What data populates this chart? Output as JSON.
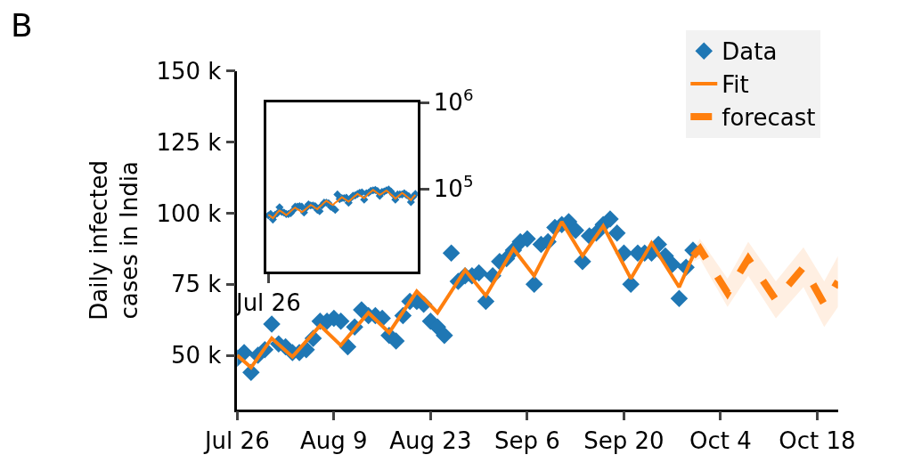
{
  "chart_data": [
    {
      "type": "scatter",
      "title": "B",
      "ylabel": "Daily infected\ncases in India",
      "xlim": [
        "--07-26",
        "--10-21"
      ],
      "xticks": [
        {
          "value": "--07-26",
          "label": "Jul 26"
        },
        {
          "value": "--08-09",
          "label": "Aug 9"
        },
        {
          "value": "--08-23",
          "label": "Aug 23"
        },
        {
          "value": "--09-06",
          "label": "Sep 6"
        },
        {
          "value": "--09-20",
          "label": "Sep 20"
        },
        {
          "value": "--10-04",
          "label": "Oct 4"
        },
        {
          "value": "--10-18",
          "label": "Oct 18"
        }
      ],
      "ylim": [
        31000,
        150000
      ],
      "yticks": [
        {
          "value": 50000,
          "label": "50 k"
        },
        {
          "value": 75000,
          "label": "75 k"
        },
        {
          "value": 100000,
          "label": "100 k"
        },
        {
          "value": 125000,
          "label": "125 k"
        },
        {
          "value": 150000,
          "label": "150 k"
        }
      ],
      "legend": "top right",
      "series": [
        {
          "name": "Data",
          "marker": "diamond",
          "color": "#1f77b4",
          "x": [
            "--07-26",
            "--07-27",
            "--07-28",
            "--07-29",
            "--07-30",
            "--07-31",
            "--08-01",
            "--08-02",
            "--08-03",
            "--08-04",
            "--08-05",
            "--08-06",
            "--08-07",
            "--08-08",
            "--08-09",
            "--08-10",
            "--08-11",
            "--08-12",
            "--08-13",
            "--08-14",
            "--08-15",
            "--08-16",
            "--08-17",
            "--08-18",
            "--08-19",
            "--08-20",
            "--08-21",
            "--08-22",
            "--08-23",
            "--08-24",
            "--08-25",
            "--08-26",
            "--08-27",
            "--08-28",
            "--08-29",
            "--08-30",
            "--08-31",
            "--09-01",
            "--09-02",
            "--09-03",
            "--09-04",
            "--09-05",
            "--09-06",
            "--09-07",
            "--09-08",
            "--09-09",
            "--09-10",
            "--09-11",
            "--09-12",
            "--09-13",
            "--09-14",
            "--09-15",
            "--09-16",
            "--09-17",
            "--09-18",
            "--09-19",
            "--09-20",
            "--09-21",
            "--09-22",
            "--09-23",
            "--09-24",
            "--09-25",
            "--09-26",
            "--09-27",
            "--09-28",
            "--09-29",
            "--09-30"
          ],
          "values": [
            49000,
            51000,
            44000,
            50000,
            52000,
            61000,
            54000,
            53000,
            51000,
            51000,
            52000,
            56000,
            62000,
            62000,
            63000,
            62000,
            53000,
            60000,
            66000,
            64000,
            64000,
            63000,
            57000,
            55000,
            64000,
            69000,
            69000,
            68000,
            62000,
            60000,
            57000,
            86000,
            76000,
            78000,
            78000,
            79000,
            69000,
            78000,
            83000,
            84000,
            87000,
            90000,
            91000,
            75000,
            89000,
            90000,
            95000,
            96000,
            97000,
            94000,
            83000,
            92000,
            93000,
            96000,
            98000,
            93000,
            86000,
            75000,
            86000,
            86000,
            86000,
            89000,
            85000,
            82000,
            70000,
            81000,
            87000
          ]
        },
        {
          "name": "Fit",
          "type": "line",
          "line_style": "solid",
          "color": "#ff7f0e",
          "x": [
            "--07-26",
            "--07-28",
            "--07-31",
            "--08-03",
            "--08-07",
            "--08-10",
            "--08-14",
            "--08-17",
            "--08-21",
            "--08-24",
            "--08-28",
            "--08-31",
            "--09-04",
            "--09-07",
            "--09-11",
            "--09-14",
            "--09-17",
            "--09-21",
            "--09-24",
            "--09-28",
            "--09-30"
          ],
          "values": [
            50000,
            45700,
            56000,
            49500,
            60500,
            53500,
            65000,
            58000,
            72500,
            65000,
            80000,
            71000,
            87500,
            78000,
            97000,
            85000,
            95500,
            77000,
            89500,
            74000,
            85000
          ]
        },
        {
          "name": "forecast",
          "type": "line",
          "line_style": "dashed",
          "color": "#ff7f0e",
          "x": [
            "--09-30",
            "--10-01",
            "--10-05",
            "--10-08",
            "--10-12",
            "--10-16",
            "--10-19",
            "--10-21"
          ],
          "values": [
            85000,
            87500,
            72000,
            84000,
            69500,
            81000,
            68000,
            76000
          ],
          "lower": [
            83000,
            84000,
            67000,
            78000,
            63000,
            74000,
            60000,
            67000
          ],
          "upper": [
            87000,
            91000,
            77000,
            90000,
            76000,
            88000,
            76000,
            85000
          ]
        }
      ]
    },
    {
      "type": "scatter",
      "log": true,
      "categories": [
        "Jul 26",
        null,
        null,
        null,
        null,
        null,
        null,
        null,
        null,
        null,
        null,
        null,
        null,
        null,
        null,
        null,
        null,
        null,
        null,
        null,
        null,
        null,
        null,
        null,
        null,
        null,
        null,
        null,
        null,
        null,
        null,
        null,
        null,
        null,
        null,
        null,
        null,
        null,
        null,
        null,
        null,
        null,
        null,
        null,
        null,
        null,
        null,
        null,
        null,
        null,
        null,
        null,
        null,
        null,
        null,
        null,
        null,
        null,
        null,
        null,
        null,
        null,
        null,
        null,
        null,
        null,
        null
      ],
      "ylim": [
        11000,
        1000000
      ],
      "yticks": [
        {
          "value": 100000,
          "label": "10$^{5}$"
        },
        {
          "value": 1000000,
          "label": "10$^{6}$"
        }
      ],
      "series": [
        {
          "marker": "diamond",
          "color": "#1f77b4",
          "values": [
            49000,
            51000,
            44000,
            50000,
            52000,
            61000,
            54000,
            53000,
            51000,
            51000,
            52000,
            56000,
            62000,
            62000,
            63000,
            62000,
            53000,
            60000,
            66000,
            64000,
            64000,
            63000,
            57000,
            55000,
            64000,
            69000,
            69000,
            68000,
            62000,
            60000,
            57000,
            86000,
            76000,
            78000,
            78000,
            79000,
            69000,
            78000,
            83000,
            84000,
            87000,
            90000,
            91000,
            75000,
            89000,
            90000,
            95000,
            96000,
            97000,
            94000,
            83000,
            92000,
            93000,
            96000,
            98000,
            93000,
            86000,
            75000,
            86000,
            86000,
            86000,
            89000,
            85000,
            82000,
            70000,
            81000,
            87000
          ]
        },
        {
          "type": "line",
          "line_style": "solid",
          "color": "#ff7f0e",
          "values": [
            50000,
            48000,
            45700,
            49000,
            53000,
            56000,
            54000,
            52000,
            49500,
            52000,
            55000,
            58000,
            60500,
            58000,
            56000,
            53500,
            56000,
            59000,
            62000,
            65000,
            63000,
            60000,
            58000,
            62000,
            65000,
            69000,
            72500,
            70000,
            67000,
            65000,
            69000,
            72000,
            76000,
            80000,
            77000,
            74000,
            71000,
            75000,
            79000,
            83000,
            87500,
            84000,
            81000,
            78000,
            83000,
            88000,
            92000,
            97000,
            93000,
            89000,
            85000,
            88000,
            92000,
            95500,
            91000,
            86000,
            82000,
            77000,
            81000,
            85000,
            89500,
            86000,
            82000,
            78000,
            74000,
            80000,
            85000
          ]
        }
      ]
    }
  ]
}
